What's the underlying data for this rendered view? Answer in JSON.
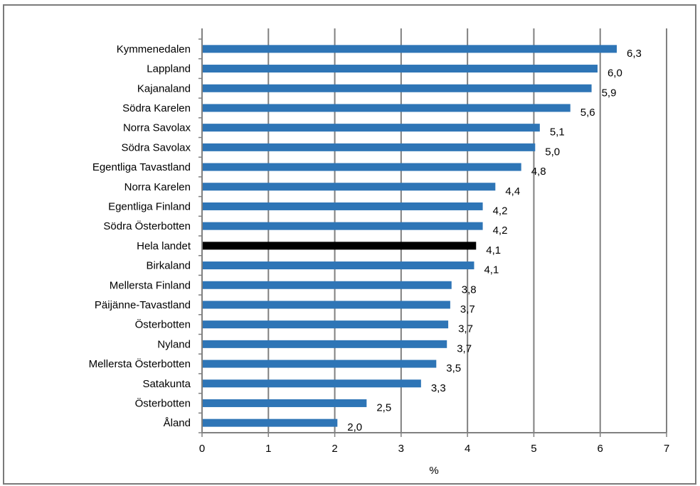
{
  "page_title": "",
  "chart_data": {
    "type": "bar",
    "orientation": "horizontal",
    "title": "",
    "xlabel": "%",
    "ylabel": "",
    "xlim": [
      0,
      7
    ],
    "xticks": [
      "0",
      "1",
      "2",
      "3",
      "4",
      "5",
      "6",
      "7"
    ],
    "grid": true,
    "legend": "none",
    "categories": [
      "Kymmenedalen",
      "Lappland",
      "Kajanaland",
      "Södra Karelen",
      "Norra Savolax",
      "Södra Savolax",
      "Egentliga Tavastland",
      "Norra Karelen",
      "Egentliga Finland",
      "Södra Österbotten",
      "Hela landet",
      "Birkaland",
      "Mellersta Finland",
      "Päijänne-Tavastland",
      "Österbotten",
      "Nyland",
      "Mellersta Österbotten",
      "Satakunta",
      "Österbotten",
      "Åland"
    ],
    "values": [
      6.25,
      5.96,
      5.87,
      5.55,
      5.09,
      5.02,
      4.81,
      4.42,
      4.23,
      4.23,
      4.13,
      4.1,
      3.76,
      3.74,
      3.71,
      3.69,
      3.53,
      3.3,
      2.48,
      2.04
    ],
    "data_labels": [
      "6,3",
      "6,0",
      "5,9",
      "5,6",
      "5,1",
      "5,0",
      "4,8",
      "4,4",
      "4,2",
      "4,2",
      "4,1",
      "4,1",
      "3,8",
      "3,7",
      "3,7",
      "3,7",
      "3,5",
      "3,3",
      "2,5",
      "2,0"
    ],
    "highlight_category_index": 10,
    "colors": {
      "bar": "#2e75b6",
      "highlight": "#000000",
      "grid": "#808080",
      "axis": "#808080"
    }
  }
}
